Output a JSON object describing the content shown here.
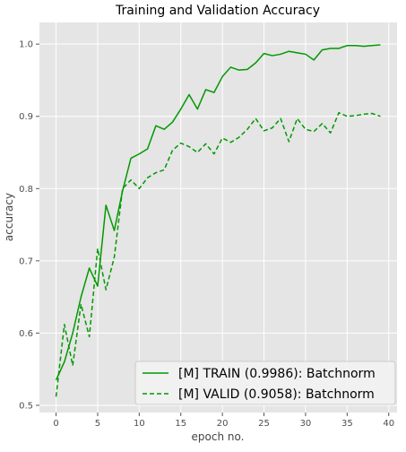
{
  "chart_data": {
    "type": "line",
    "title": "Training and Validation Accuracy",
    "xlabel": "epoch no.",
    "ylabel": "accuracy",
    "xlim": [
      -2,
      41
    ],
    "ylim": [
      0.49,
      1.03
    ],
    "xticks": [
      0,
      5,
      10,
      15,
      20,
      25,
      30,
      35,
      40
    ],
    "yticks": [
      0.5,
      0.6,
      0.7,
      0.8,
      0.9,
      1.0
    ],
    "ytick_labels": [
      "0.5",
      "0.6",
      "0.7",
      "0.8",
      "0.9",
      "1.0"
    ],
    "grid": true,
    "legend_position": "lower-right",
    "series": [
      {
        "name": "[M] TRAIN (0.9986): Batchnorm",
        "color": "#009900",
        "dash": "solid",
        "x": [
          0,
          1,
          2,
          3,
          4,
          5,
          6,
          7,
          8,
          9,
          10,
          11,
          12,
          13,
          14,
          15,
          16,
          17,
          18,
          19,
          20,
          21,
          22,
          23,
          24,
          25,
          26,
          27,
          28,
          29,
          30,
          31,
          32,
          33,
          34,
          35,
          36,
          37,
          38,
          39
        ],
        "values": [
          0.535,
          0.56,
          0.6,
          0.65,
          0.69,
          0.665,
          0.777,
          0.742,
          0.797,
          0.842,
          0.848,
          0.855,
          0.887,
          0.882,
          0.892,
          0.91,
          0.93,
          0.91,
          0.937,
          0.933,
          0.955,
          0.968,
          0.964,
          0.965,
          0.974,
          0.987,
          0.984,
          0.986,
          0.99,
          0.988,
          0.986,
          0.978,
          0.992,
          0.994,
          0.994,
          0.998,
          0.998,
          0.997,
          0.998,
          0.999
        ]
      },
      {
        "name": "[M] VALID (0.9058): Batchnorm",
        "color": "#009900",
        "dash": "dashed",
        "x": [
          0,
          1,
          2,
          3,
          4,
          5,
          6,
          7,
          8,
          9,
          10,
          11,
          12,
          13,
          14,
          15,
          16,
          17,
          18,
          19,
          20,
          21,
          22,
          23,
          24,
          25,
          26,
          27,
          28,
          29,
          30,
          31,
          32,
          33,
          34,
          35,
          36,
          37,
          38,
          39
        ],
        "values": [
          0.512,
          0.612,
          0.555,
          0.64,
          0.595,
          0.717,
          0.66,
          0.705,
          0.8,
          0.812,
          0.8,
          0.815,
          0.822,
          0.826,
          0.853,
          0.863,
          0.858,
          0.85,
          0.862,
          0.848,
          0.87,
          0.864,
          0.871,
          0.882,
          0.897,
          0.88,
          0.884,
          0.897,
          0.865,
          0.897,
          0.882,
          0.879,
          0.89,
          0.877,
          0.905,
          0.9,
          0.901,
          0.903,
          0.904,
          0.9
        ]
      }
    ]
  }
}
